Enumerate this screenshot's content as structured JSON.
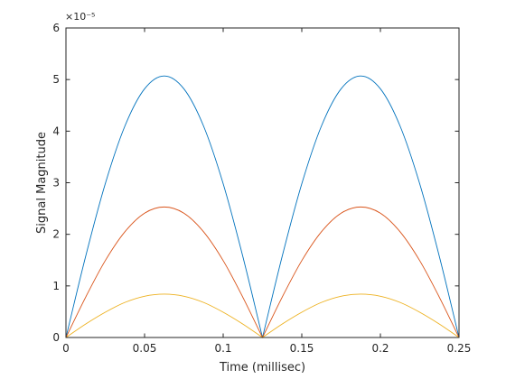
{
  "chart_data": {
    "type": "line",
    "title": "",
    "xlabel": "Time (millisec)",
    "ylabel": "Signal Magnitude",
    "y_exponent_label": "×10⁻⁵",
    "xlim": [
      0,
      0.25
    ],
    "ylim": [
      0,
      6e-05
    ],
    "grid": false,
    "legend": "none",
    "x_ticks": [
      0,
      0.05,
      0.1,
      0.15,
      0.2,
      0.25
    ],
    "x_tick_labels": [
      "0",
      "0.05",
      "0.1",
      "0.15",
      "0.2",
      "0.25"
    ],
    "y_ticks": [
      0,
      1e-05,
      2e-05,
      3e-05,
      4e-05,
      5e-05,
      6e-05
    ],
    "y_tick_labels": [
      "0",
      "1",
      "2",
      "3",
      "4",
      "5",
      "6"
    ],
    "x": [
      0,
      0.0125,
      0.025,
      0.0375,
      0.05,
      0.0625,
      0.075,
      0.0875,
      0.1,
      0.1125,
      0.125,
      0.1375,
      0.15,
      0.1625,
      0.175,
      0.1875,
      0.2,
      0.2125,
      0.225,
      0.2375,
      0.25
    ],
    "series": [
      {
        "color": "#0072BD",
        "values": [
          0,
          1.57e-05,
          2.98e-05,
          4.1e-05,
          4.82e-05,
          5.07e-05,
          4.82e-05,
          4.1e-05,
          2.98e-05,
          1.57e-05,
          0,
          1.57e-05,
          2.98e-05,
          4.1e-05,
          4.82e-05,
          5.07e-05,
          4.82e-05,
          4.1e-05,
          2.98e-05,
          1.57e-05,
          0
        ]
      },
      {
        "color": "#D95319",
        "values": [
          0,
          7.8e-06,
          1.49e-05,
          2.05e-05,
          2.41e-05,
          2.53e-05,
          2.41e-05,
          2.05e-05,
          1.49e-05,
          7.8e-06,
          0,
          7.8e-06,
          1.49e-05,
          2.05e-05,
          2.41e-05,
          2.53e-05,
          2.41e-05,
          2.05e-05,
          1.49e-05,
          7.8e-06,
          0
        ]
      },
      {
        "color": "#EDB120",
        "values": [
          0,
          2.6e-06,
          4.9e-06,
          6.8e-06,
          8e-06,
          8.4e-06,
          8e-06,
          6.8e-06,
          4.9e-06,
          2.6e-06,
          0,
          2.6e-06,
          4.9e-06,
          6.8e-06,
          8e-06,
          8.4e-06,
          8e-06,
          6.8e-06,
          4.9e-06,
          2.6e-06,
          0
        ]
      }
    ]
  }
}
